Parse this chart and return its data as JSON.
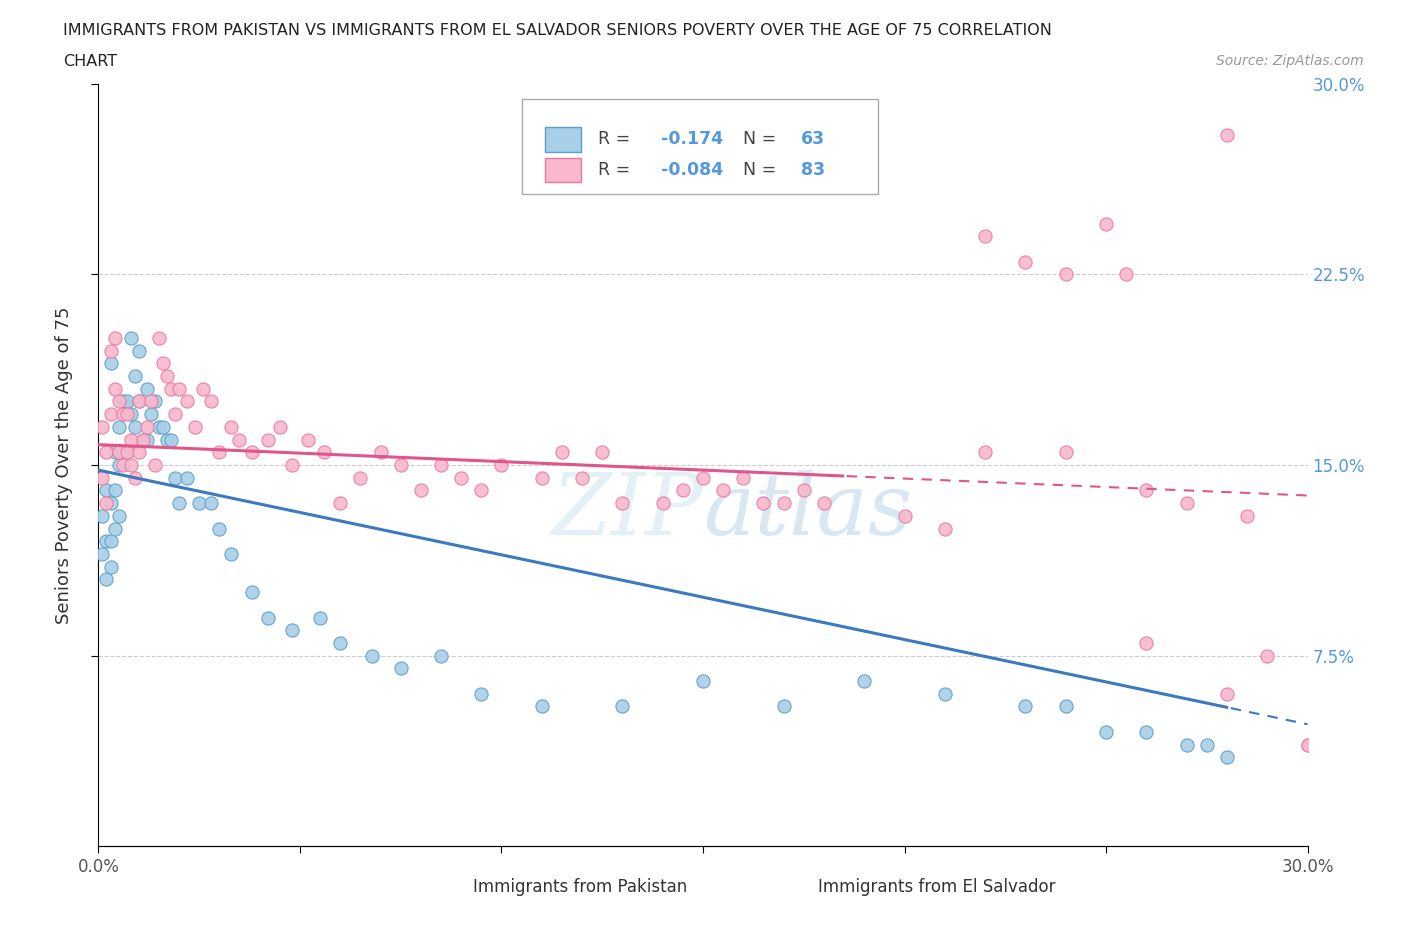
{
  "title_line1": "IMMIGRANTS FROM PAKISTAN VS IMMIGRANTS FROM EL SALVADOR SENIORS POVERTY OVER THE AGE OF 75 CORRELATION",
  "title_line2": "CHART",
  "source": "Source: ZipAtlas.com",
  "ylabel": "Seniors Poverty Over the Age of 75",
  "x_min": 0.0,
  "x_max": 0.3,
  "y_min": 0.0,
  "y_max": 0.3,
  "pakistan_R": -0.174,
  "pakistan_N": 63,
  "elsalvador_R": -0.084,
  "elsalvador_N": 83,
  "pakistan_dot_color": "#a8cfe8",
  "pakistan_edge_color": "#5b9ec9",
  "elsalvador_dot_color": "#f9b8cc",
  "elsalvador_edge_color": "#e87aa0",
  "trend_pakistan_color": "#3a7abf",
  "trend_elsalvador_color": "#e0558a",
  "watermark_color": "#c8dff0",
  "watermark_text_color": "#b0cce0",
  "grid_color": "#cccccc",
  "right_tick_color": "#5599dd",
  "legend_box_color": "#eeeeee",
  "pk_x": [
    0.001,
    0.001,
    0.002,
    0.002,
    0.002,
    0.003,
    0.003,
    0.003,
    0.003,
    0.004,
    0.004,
    0.004,
    0.005,
    0.005,
    0.005,
    0.006,
    0.006,
    0.007,
    0.007,
    0.008,
    0.008,
    0.009,
    0.009,
    0.01,
    0.01,
    0.011,
    0.012,
    0.012,
    0.013,
    0.014,
    0.015,
    0.016,
    0.017,
    0.018,
    0.019,
    0.02,
    0.022,
    0.025,
    0.028,
    0.03,
    0.033,
    0.038,
    0.042,
    0.048,
    0.055,
    0.06,
    0.068,
    0.075,
    0.085,
    0.095,
    0.11,
    0.13,
    0.15,
    0.17,
    0.19,
    0.21,
    0.23,
    0.24,
    0.25,
    0.26,
    0.27,
    0.275,
    0.28
  ],
  "pk_y": [
    0.13,
    0.115,
    0.14,
    0.12,
    0.105,
    0.19,
    0.135,
    0.12,
    0.11,
    0.155,
    0.14,
    0.125,
    0.165,
    0.15,
    0.13,
    0.175,
    0.155,
    0.175,
    0.155,
    0.2,
    0.17,
    0.185,
    0.165,
    0.195,
    0.175,
    0.16,
    0.18,
    0.16,
    0.17,
    0.175,
    0.165,
    0.165,
    0.16,
    0.16,
    0.145,
    0.135,
    0.145,
    0.135,
    0.135,
    0.125,
    0.115,
    0.1,
    0.09,
    0.085,
    0.09,
    0.08,
    0.075,
    0.07,
    0.075,
    0.06,
    0.055,
    0.055,
    0.065,
    0.055,
    0.065,
    0.06,
    0.055,
    0.055,
    0.045,
    0.045,
    0.04,
    0.04,
    0.035
  ],
  "es_x": [
    0.001,
    0.001,
    0.002,
    0.002,
    0.003,
    0.003,
    0.004,
    0.004,
    0.005,
    0.005,
    0.006,
    0.006,
    0.007,
    0.007,
    0.008,
    0.008,
    0.009,
    0.01,
    0.01,
    0.011,
    0.012,
    0.013,
    0.014,
    0.015,
    0.016,
    0.017,
    0.018,
    0.019,
    0.02,
    0.022,
    0.024,
    0.026,
    0.028,
    0.03,
    0.033,
    0.035,
    0.038,
    0.042,
    0.045,
    0.048,
    0.052,
    0.056,
    0.06,
    0.065,
    0.07,
    0.075,
    0.08,
    0.085,
    0.09,
    0.095,
    0.1,
    0.11,
    0.115,
    0.12,
    0.125,
    0.13,
    0.14,
    0.145,
    0.15,
    0.155,
    0.16,
    0.165,
    0.17,
    0.175,
    0.18,
    0.2,
    0.21,
    0.22,
    0.23,
    0.24,
    0.25,
    0.255,
    0.26,
    0.27,
    0.28,
    0.285,
    0.29,
    0.3,
    0.22,
    0.24,
    0.26,
    0.28,
    0.3
  ],
  "es_y": [
    0.145,
    0.165,
    0.155,
    0.135,
    0.195,
    0.17,
    0.2,
    0.18,
    0.175,
    0.155,
    0.17,
    0.15,
    0.155,
    0.17,
    0.15,
    0.16,
    0.145,
    0.175,
    0.155,
    0.16,
    0.165,
    0.175,
    0.15,
    0.2,
    0.19,
    0.185,
    0.18,
    0.17,
    0.18,
    0.175,
    0.165,
    0.18,
    0.175,
    0.155,
    0.165,
    0.16,
    0.155,
    0.16,
    0.165,
    0.15,
    0.16,
    0.155,
    0.135,
    0.145,
    0.155,
    0.15,
    0.14,
    0.15,
    0.145,
    0.14,
    0.15,
    0.145,
    0.155,
    0.145,
    0.155,
    0.135,
    0.135,
    0.14,
    0.145,
    0.14,
    0.145,
    0.135,
    0.135,
    0.14,
    0.135,
    0.13,
    0.125,
    0.24,
    0.23,
    0.225,
    0.245,
    0.225,
    0.14,
    0.135,
    0.28,
    0.13,
    0.075,
    0.04,
    0.155,
    0.155,
    0.08,
    0.06,
    0.04
  ]
}
